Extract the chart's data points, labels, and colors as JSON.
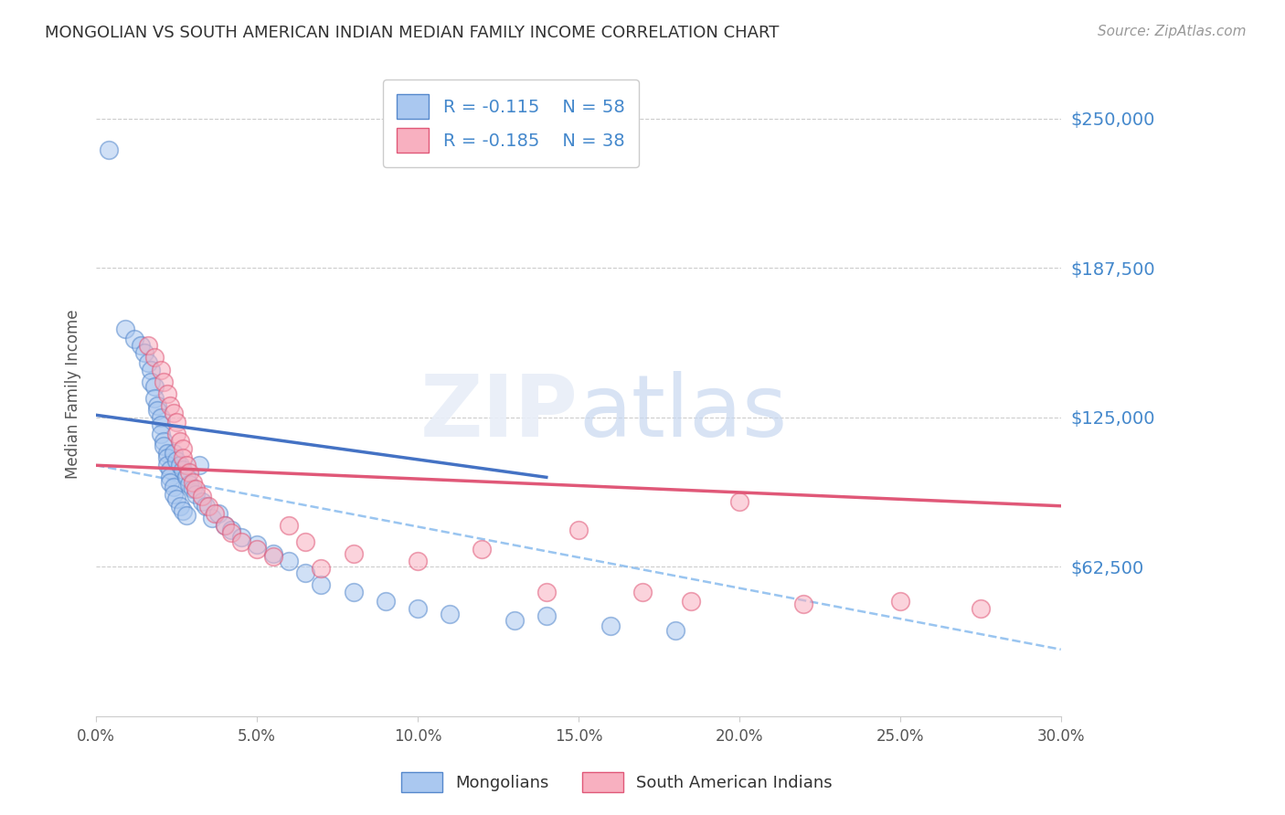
{
  "title": "MONGOLIAN VS SOUTH AMERICAN INDIAN MEDIAN FAMILY INCOME CORRELATION CHART",
  "source": "Source: ZipAtlas.com",
  "ylabel": "Median Family Income",
  "ytick_labels": [
    "$250,000",
    "$187,500",
    "$125,000",
    "$62,500"
  ],
  "ytick_values": [
    250000,
    187500,
    125000,
    62500
  ],
  "ylim": [
    0,
    270000
  ],
  "xlim": [
    0.0,
    0.3
  ],
  "xtick_values": [
    0.0,
    0.05,
    0.1,
    0.15,
    0.2,
    0.25,
    0.3
  ],
  "xtick_labels": [
    "0.0%",
    "5.0%",
    "10.0%",
    "15.0%",
    "20.0%",
    "25.0%",
    "30.0%"
  ],
  "legend_r1": "R = -0.115",
  "legend_n1": "N = 58",
  "legend_r2": "R = -0.185",
  "legend_n2": "N = 38",
  "legend_mongolians": "Mongolians",
  "legend_sa_indians": "South American Indians",
  "color_mong_face": "#aac8f0",
  "color_mong_edge": "#5588cc",
  "color_sa_face": "#f8b0c0",
  "color_sa_edge": "#e05878",
  "color_line_mong": "#4472c4",
  "color_line_sa": "#e05878",
  "color_line_dashed": "#88bbee",
  "color_ytick": "#4488cc",
  "color_grid": "#cccccc",
  "color_title": "#333333",
  "background": "#ffffff",
  "legend_text_color": "#4488cc",
  "mongolian_x": [
    0.004,
    0.009,
    0.012,
    0.014,
    0.015,
    0.016,
    0.017,
    0.017,
    0.018,
    0.018,
    0.019,
    0.019,
    0.02,
    0.02,
    0.02,
    0.021,
    0.021,
    0.022,
    0.022,
    0.022,
    0.023,
    0.023,
    0.023,
    0.024,
    0.024,
    0.024,
    0.025,
    0.025,
    0.026,
    0.026,
    0.027,
    0.027,
    0.028,
    0.028,
    0.029,
    0.03,
    0.031,
    0.032,
    0.033,
    0.034,
    0.036,
    0.038,
    0.04,
    0.042,
    0.045,
    0.05,
    0.055,
    0.06,
    0.065,
    0.07,
    0.08,
    0.09,
    0.1,
    0.11,
    0.13,
    0.14,
    0.16,
    0.18
  ],
  "mongolian_y": [
    237000,
    162000,
    158000,
    155000,
    152000,
    148000,
    145000,
    140000,
    138000,
    133000,
    130000,
    128000,
    125000,
    122000,
    118000,
    115000,
    113000,
    110000,
    108000,
    105000,
    103000,
    100000,
    98000,
    110000,
    96000,
    93000,
    107000,
    91000,
    105000,
    88000,
    103000,
    86000,
    100000,
    84000,
    97000,
    95000,
    93000,
    105000,
    90000,
    88000,
    83000,
    85000,
    80000,
    78000,
    75000,
    72000,
    68000,
    65000,
    60000,
    55000,
    52000,
    48000,
    45000,
    43000,
    40000,
    42000,
    38000,
    36000
  ],
  "sa_indian_x": [
    0.016,
    0.018,
    0.02,
    0.021,
    0.022,
    0.023,
    0.024,
    0.025,
    0.025,
    0.026,
    0.027,
    0.027,
    0.028,
    0.029,
    0.03,
    0.031,
    0.033,
    0.035,
    0.037,
    0.04,
    0.042,
    0.045,
    0.05,
    0.055,
    0.06,
    0.065,
    0.07,
    0.08,
    0.1,
    0.12,
    0.14,
    0.15,
    0.17,
    0.185,
    0.2,
    0.22,
    0.25,
    0.275
  ],
  "sa_indian_y": [
    155000,
    150000,
    145000,
    140000,
    135000,
    130000,
    127000,
    123000,
    118000,
    115000,
    112000,
    108000,
    105000,
    102000,
    98000,
    95000,
    92000,
    88000,
    85000,
    80000,
    77000,
    73000,
    70000,
    67000,
    80000,
    73000,
    62000,
    68000,
    65000,
    70000,
    52000,
    78000,
    52000,
    48000,
    90000,
    47000,
    48000,
    45000
  ],
  "line_mong_x0": 0.0,
  "line_mong_y0": 126000,
  "line_mong_x1": 0.14,
  "line_mong_y1": 100000,
  "line_sa_x0": 0.0,
  "line_sa_y0": 105000,
  "line_sa_x1": 0.3,
  "line_sa_y1": 88000,
  "line_dash_x0": 0.0,
  "line_dash_y0": 105000,
  "line_dash_x1": 0.3,
  "line_dash_y1": 28000
}
